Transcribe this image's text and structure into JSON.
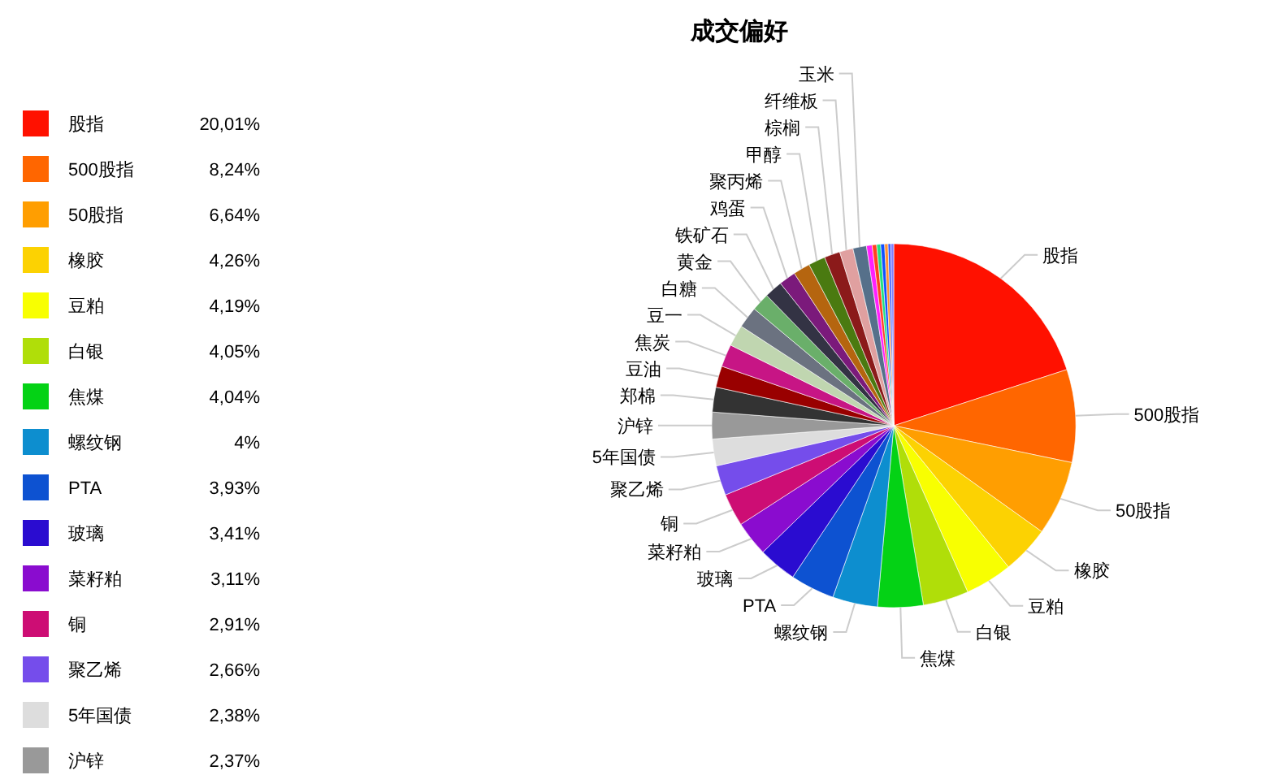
{
  "chart_data": {
    "type": "pie",
    "title": "成交偏好",
    "categories": [
      "股指",
      "500股指",
      "50股指",
      "橡胶",
      "豆粕",
      "白银",
      "焦煤",
      "螺纹钢",
      "PTA",
      "玻璃",
      "菜籽粕",
      "铜",
      "聚乙烯",
      "5年国债",
      "沪锌",
      "郑棉",
      "豆油",
      "焦炭",
      "豆一",
      "白糖",
      "黄金",
      "铁矿石",
      "鸡蛋",
      "聚丙烯",
      "甲醇",
      "棕榈",
      "纤维板",
      "玉米",
      null,
      null,
      null,
      null,
      null,
      null,
      null
    ],
    "values": [
      20.01,
      8.24,
      6.64,
      4.26,
      4.19,
      4.05,
      4.04,
      4,
      3.93,
      3.41,
      3.11,
      2.91,
      2.66,
      2.38,
      2.37,
      2.2,
      1.9,
      2.0,
      1.9,
      1.9,
      1.6,
      1.6,
      1.5,
      1.5,
      1.5,
      1.4,
      1.2,
      1.2,
      0.5,
      0.4,
      0.35,
      0.35,
      0.3,
      0.25,
      0.25
    ],
    "value_labels": [
      "20,01%",
      "8,24%",
      "6,64%",
      "4,26%",
      "4,19%",
      "4,05%",
      "4,04%",
      "4%",
      "3,93%",
      "3,41%",
      "3,11%",
      "2,91%",
      "2,66%",
      "2,38%",
      "2,37%",
      null,
      null,
      null,
      null,
      null,
      null,
      null,
      null,
      null,
      null,
      null,
      null,
      null,
      null,
      null,
      null,
      null,
      null,
      null,
      null
    ],
    "colors": [
      "#ff1100",
      "#ff6600",
      "#ff9e01",
      "#fcd202",
      "#f8ff01",
      "#b0de09",
      "#04d215",
      "#0d8ecf",
      "#0d52d1",
      "#2a0cd0",
      "#8a0ccf",
      "#cd0d74",
      "#754deb",
      "#dddddd",
      "#999999",
      "#333333",
      "#990000",
      "#c71585",
      "#c0d6b0",
      "#6b7280",
      "#6aaf6a",
      "#333344",
      "#7b1a7b",
      "#b5650f",
      "#4a7a10",
      "#8b1a1a",
      "#e0a0a0",
      "#56708a",
      "#ff20ff",
      "#ff4020",
      "#20e080",
      "#1050ff",
      "#ff9030",
      "#4060ff",
      "#8080ff"
    ],
    "legend": "left"
  }
}
